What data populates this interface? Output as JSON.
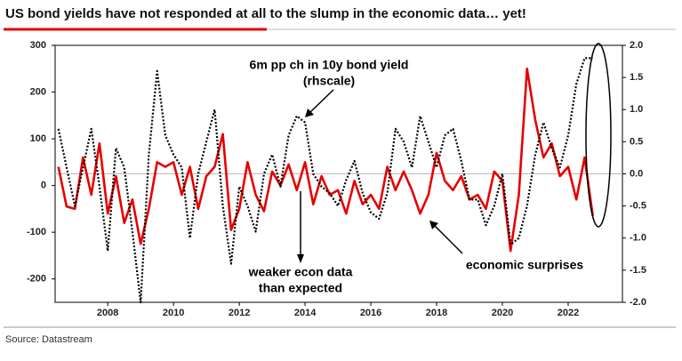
{
  "chart_data": {
    "type": "line",
    "title": "US bond yields have not responded at all to the slump in the economic data… yet!",
    "source": "Source: Datastream",
    "annotations": [
      "6m pp ch in 10y bond yield",
      "(rhscale)",
      "weaker econ data",
      "than expected"
    ],
    "x": [
      2006.5,
      2006.75,
      2007,
      2007.25,
      2007.5,
      2007.75,
      2008,
      2008.25,
      2008.5,
      2008.75,
      2009,
      2009.25,
      2009.5,
      2009.75,
      2010,
      2010.25,
      2010.5,
      2010.75,
      2011,
      2011.25,
      2011.5,
      2011.75,
      2012,
      2012.25,
      2012.5,
      2012.75,
      2013,
      2013.25,
      2013.5,
      2013.75,
      2014,
      2014.25,
      2014.5,
      2014.75,
      2015,
      2015.25,
      2015.5,
      2015.75,
      2016,
      2016.25,
      2016.5,
      2016.75,
      2017,
      2017.25,
      2017.5,
      2017.75,
      2018,
      2018.25,
      2018.5,
      2018.75,
      2019,
      2019.25,
      2019.5,
      2019.75,
      2020,
      2020.25,
      2020.5,
      2020.75,
      2021,
      2021.25,
      2021.5,
      2021.75,
      2022,
      2022.25,
      2022.5,
      2022.75
    ],
    "series": [
      {
        "name": "economic surprises",
        "color": "#e60000",
        "values": [
          40,
          -45,
          -50,
          60,
          -20,
          90,
          -60,
          20,
          -80,
          -30,
          -125,
          -50,
          50,
          40,
          50,
          -20,
          40,
          -50,
          20,
          40,
          110,
          -95,
          -50,
          50,
          -20,
          -55,
          30,
          0,
          45,
          -10,
          50,
          -40,
          20,
          -20,
          -10,
          -60,
          10,
          -40,
          -20,
          -50,
          40,
          -10,
          30,
          -10,
          -60,
          -20,
          70,
          10,
          -10,
          20,
          -30,
          -20,
          -50,
          30,
          10,
          -140,
          -20,
          250,
          140,
          60,
          90,
          20,
          40,
          -30,
          60,
          -65
        ]
      },
      {
        "color": "#000000",
        "axis": "y2",
        "dotted": true,
        "values": [
          0.7,
          0.1,
          -0.5,
          0.1,
          0.7,
          -0.2,
          -1.2,
          0.4,
          0.1,
          -0.9,
          -2.0,
          0.3,
          1.6,
          0.6,
          0.3,
          0.1,
          -1.0,
          0.0,
          0.5,
          1.0,
          -0.5,
          -1.4,
          -0.2,
          -0.5,
          -0.9,
          0.0,
          0.3,
          -0.2,
          0.6,
          0.9,
          0.8,
          0.0,
          -0.2,
          -0.3,
          -0.5,
          -0.1,
          0.2,
          -0.3,
          -0.6,
          -0.7,
          -0.3,
          0.7,
          0.5,
          0.1,
          0.9,
          0.5,
          0.1,
          0.6,
          0.7,
          0.2,
          -0.4,
          -0.4,
          -0.8,
          -0.5,
          0.0,
          -1.1,
          -1.0,
          -0.5,
          0.3,
          0.8,
          0.4,
          0.1,
          0.6,
          1.4,
          1.8,
          1.8
        ]
      }
    ],
    "xlim": [
      2006.4,
      2023.65
    ],
    "xticks": [
      2008,
      2010,
      2012,
      2014,
      2016,
      2018,
      2020,
      2022
    ],
    "ylim": [
      -250,
      300
    ],
    "yticks": [
      300,
      200,
      100,
      0,
      -100,
      -200
    ],
    "y2lim": [
      -2.0,
      2.0
    ],
    "y2ticks": [
      {
        "value": 2,
        "label": "2.0"
      },
      {
        "value": 1.5,
        "label": "1.5"
      },
      {
        "value": 1,
        "label": "1.0"
      },
      {
        "value": 0.5,
        "label": "0.5"
      },
      {
        "value": 0,
        "label": "0.0"
      },
      {
        "value": -0.5,
        "label": "-0.5"
      },
      {
        "value": -1,
        "label": "-1.0"
      },
      {
        "value": -1.5,
        "label": "-1.5"
      },
      {
        "value": -2,
        "label": "-2.0"
      }
    ]
  }
}
